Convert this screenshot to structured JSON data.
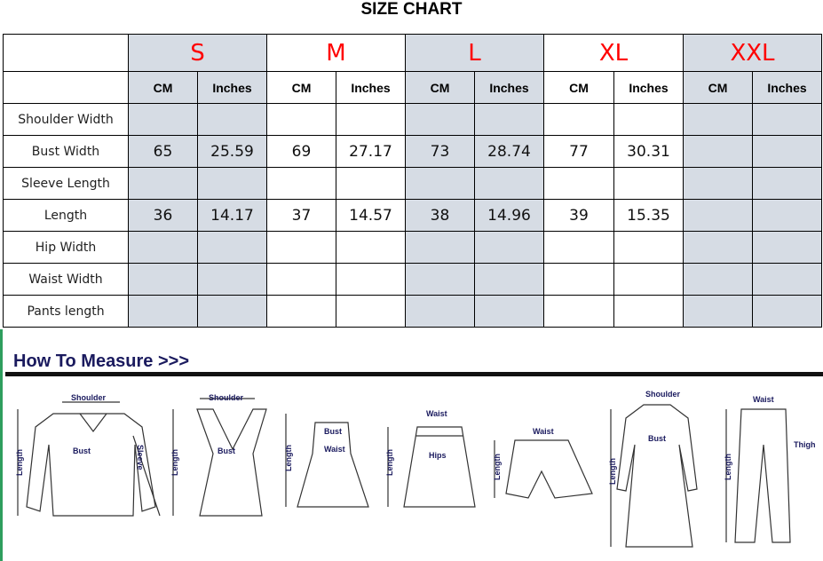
{
  "title": "SIZE CHART",
  "sizes": [
    "S",
    "M",
    "L",
    "XL",
    "XXL"
  ],
  "units": {
    "cm": "CM",
    "in": "Inches"
  },
  "rows": [
    {
      "label": "Shoulder Width",
      "values": [
        "",
        "",
        "",
        "",
        "",
        "",
        "",
        "",
        "",
        ""
      ]
    },
    {
      "label": "Bust Width",
      "values": [
        "65",
        "25.59",
        "69",
        "27.17",
        "73",
        "28.74",
        "77",
        "30.31",
        "",
        ""
      ]
    },
    {
      "label": "Sleeve Length",
      "values": [
        "",
        "",
        "",
        "",
        "",
        "",
        "",
        "",
        "",
        ""
      ]
    },
    {
      "label": "Length",
      "values": [
        "36",
        "14.17",
        "37",
        "14.57",
        "38",
        "14.96",
        "39",
        "15.35",
        "",
        ""
      ]
    },
    {
      "label": "Hip Width",
      "values": [
        "",
        "",
        "",
        "",
        "",
        "",
        "",
        "",
        "",
        ""
      ]
    },
    {
      "label": "Waist Width",
      "values": [
        "",
        "",
        "",
        "",
        "",
        "",
        "",
        "",
        "",
        ""
      ]
    },
    {
      "label": "Pants length",
      "values": [
        "",
        "",
        "",
        "",
        "",
        "",
        "",
        "",
        "",
        ""
      ]
    }
  ],
  "colors": {
    "size_label": "#ff0000",
    "shade": "#d6dce4",
    "measure_title": "#1a1a5e"
  },
  "measure": {
    "title": "How To Measure >>>",
    "labels": {
      "shoulder": "Shoulder",
      "bust": "Bust",
      "sleeve": "Sleeve",
      "length": "Length",
      "waist": "Waist",
      "hips": "Hips",
      "thigh": "Thigh"
    }
  }
}
